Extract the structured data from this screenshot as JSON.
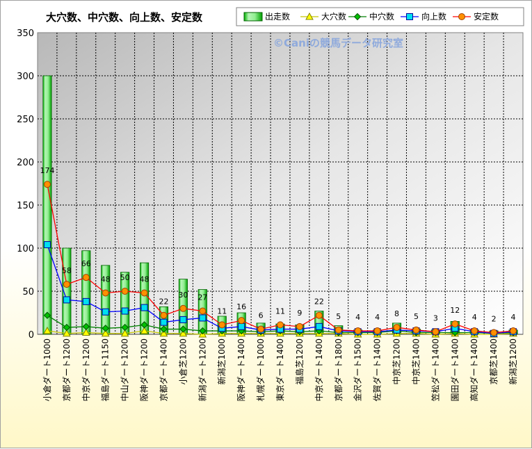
{
  "chart_data": {
    "type": "bar",
    "title": "大穴数、中穴数、向上数、安定数",
    "watermark": "©Caniの競馬データ研究室",
    "ylim": [
      0,
      350
    ],
    "yticks": [
      0,
      50,
      100,
      150,
      200,
      250,
      300,
      350
    ],
    "grid": true,
    "legend_position": "top-right",
    "categories": [
      "小倉ダート1000",
      "京都ダート1200",
      "中京ダート1200",
      "福島ダート1150",
      "中山ダート1200",
      "阪神ダート1200",
      "京都ダート1400",
      "小倉芝1200",
      "新潟ダート1200",
      "新潟芝1000",
      "阪神ダート1400",
      "札幌ダート1000",
      "東京ダート1400",
      "福島芝1200",
      "中京ダート1400",
      "京都ダート1800",
      "金沢ダート1500",
      "佐賀ダート1400",
      "中京芝1200",
      "中京芝1400",
      "笠松ダート1400",
      "園田ダート1400",
      "高知ダート1400",
      "京都芝1400",
      "新潟芝1200"
    ],
    "series": [
      {
        "name": "出走数",
        "kind": "bar",
        "color": "#7ee37e",
        "values": [
          300,
          100,
          97,
          80,
          72,
          83,
          32,
          64,
          52,
          21,
          25,
          13,
          12,
          11,
          27,
          10,
          5,
          5,
          13,
          6,
          5,
          15,
          5,
          4,
          5
        ]
      },
      {
        "name": "大穴数",
        "kind": "line",
        "color": "#ffff00",
        "values": [
          4,
          1,
          2,
          1,
          1,
          4,
          1,
          1,
          0,
          1,
          1,
          1,
          1,
          1,
          1,
          1,
          0,
          0,
          1,
          1,
          0,
          1,
          0,
          0,
          1
        ]
      },
      {
        "name": "中穴数",
        "kind": "line",
        "color": "#00a000",
        "values": [
          22,
          8,
          9,
          7,
          8,
          11,
          6,
          6,
          4,
          4,
          4,
          3,
          4,
          3,
          4,
          2,
          2,
          2,
          4,
          2,
          2,
          2,
          2,
          1,
          2
        ]
      },
      {
        "name": "向上数",
        "kind": "line",
        "color": "#0000ff",
        "values": [
          104,
          40,
          38,
          26,
          27,
          31,
          14,
          17,
          19,
          7,
          9,
          5,
          6,
          6,
          9,
          4,
          3,
          3,
          5,
          4,
          3,
          7,
          3,
          1,
          3
        ]
      },
      {
        "name": "安定数",
        "kind": "line",
        "color": "#ff0000",
        "values": [
          174,
          58,
          66,
          48,
          50,
          48,
          22,
          30,
          27,
          11,
          16,
          6,
          11,
          9,
          22,
          5,
          4,
          4,
          8,
          5,
          3,
          12,
          4,
          2,
          4
        ]
      }
    ],
    "data_labels": [
      "174",
      "58",
      "66",
      "48",
      "50",
      "48",
      "22",
      "30",
      "27",
      "11",
      "16",
      "6",
      "11",
      "9",
      "22",
      "5",
      "4",
      "4",
      "8",
      "5",
      "3",
      "12",
      "4",
      "2",
      "4"
    ]
  }
}
